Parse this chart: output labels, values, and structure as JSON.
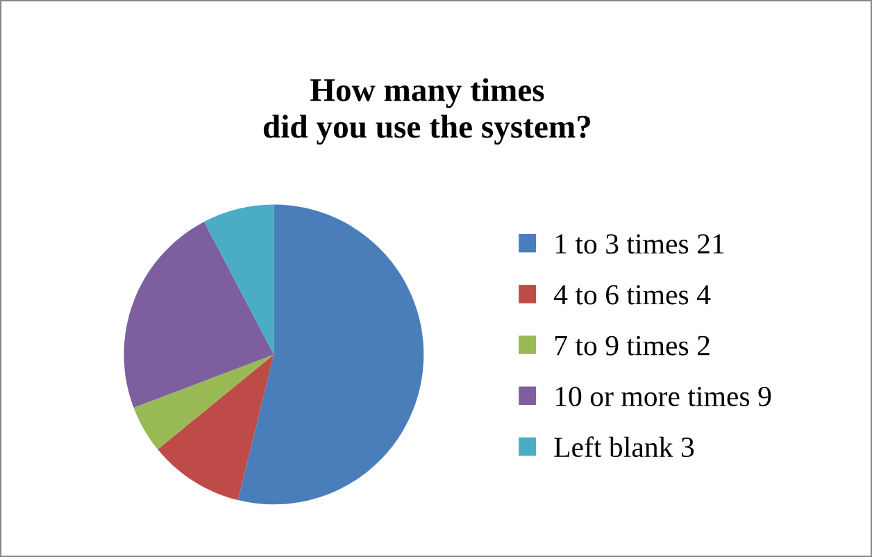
{
  "chart_data": {
    "type": "pie",
    "title": "How many times\ndid you use the system?",
    "categories": [
      "1 to 3 times 21",
      "4 to 6 times 4",
      "7 to 9 times 2",
      "10 or more times 9",
      "Left blank 3"
    ],
    "values": [
      21,
      4,
      2,
      9,
      3
    ],
    "colors": [
      "#4a7ebb",
      "#be4b48",
      "#98b954",
      "#7d5fa0",
      "#4bacc6"
    ],
    "legend": "right"
  }
}
